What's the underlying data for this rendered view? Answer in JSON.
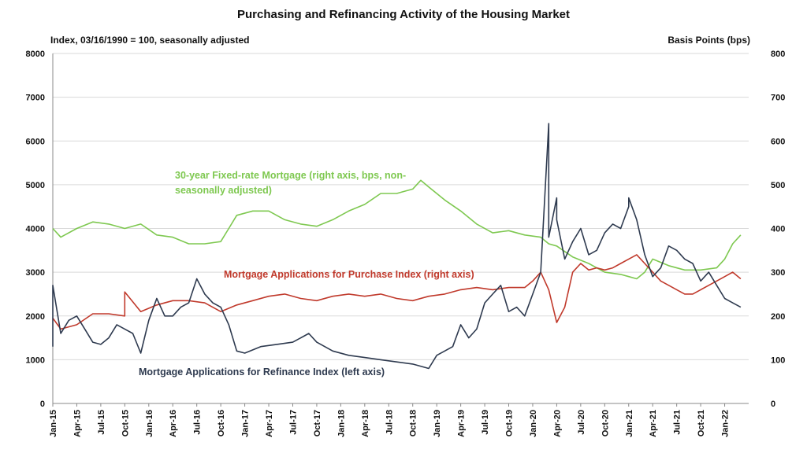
{
  "chart_data": {
    "type": "line",
    "title": "Purchasing and Refinancing Activity of the Housing Market",
    "left_axis": {
      "label": "Index, 03/16/1990 = 100, seasonally adjusted",
      "range": [
        0,
        8000
      ],
      "ticks": [
        "0",
        "1000",
        "2000",
        "3000",
        "4000",
        "5000",
        "6000",
        "7000",
        "8000"
      ]
    },
    "right_axis": {
      "label": "Basis Points (bps)",
      "range": [
        0,
        800
      ],
      "ticks": [
        "0",
        "100",
        "200",
        "300",
        "400",
        "500",
        "600",
        "700",
        "800"
      ]
    },
    "x_ticks": [
      "Jan-15",
      "Apr-15",
      "Jul-15",
      "Oct-15",
      "Jan-16",
      "Apr-16",
      "Jul-16",
      "Oct-16",
      "Jan-17",
      "Apr-17",
      "Jul-17",
      "Oct-17",
      "Jan-18",
      "Apr-18",
      "Jul-18",
      "Oct-18",
      "Jan-19",
      "Apr-19",
      "Jul-19",
      "Oct-19",
      "Jan-20",
      "Apr-20",
      "Jul-20",
      "Oct-20",
      "Jan-21",
      "Apr-21",
      "Jul-21",
      "Oct-21",
      "Jan-22"
    ],
    "x_range": [
      "2015-01",
      "2022-04"
    ],
    "grid": "horizontal",
    "series": [
      {
        "name": "Mortgage Applications for Refinance Index (left axis)",
        "axis": "left",
        "color": "#2e3a4f",
        "x": [
          "2015-01",
          "2015-01",
          "2015-02",
          "2015-03",
          "2015-04",
          "2015-05",
          "2015-06",
          "2015-07",
          "2015-08",
          "2015-09",
          "2015-10",
          "2015-11",
          "2015-12",
          "2016-01",
          "2016-02",
          "2016-03",
          "2016-04",
          "2016-05",
          "2016-06",
          "2016-07",
          "2016-08",
          "2016-09",
          "2016-10",
          "2016-11",
          "2016-12",
          "2017-01",
          "2017-03",
          "2017-05",
          "2017-07",
          "2017-09",
          "2017-10",
          "2017-12",
          "2018-02",
          "2018-04",
          "2018-06",
          "2018-08",
          "2018-10",
          "2018-12",
          "2019-01",
          "2019-02",
          "2019-03",
          "2019-04",
          "2019-05",
          "2019-06",
          "2019-07",
          "2019-08",
          "2019-09",
          "2019-10",
          "2019-11",
          "2019-12",
          "2020-01",
          "2020-02",
          "2020-03",
          "2020-03",
          "2020-04",
          "2020-04",
          "2020-05",
          "2020-06",
          "2020-07",
          "2020-08",
          "2020-09",
          "2020-10",
          "2020-11",
          "2020-12",
          "2021-01",
          "2021-01",
          "2021-02",
          "2021-03",
          "2021-04",
          "2021-05",
          "2021-06",
          "2021-07",
          "2021-08",
          "2021-09",
          "2021-10",
          "2021-11",
          "2021-12",
          "2022-01",
          "2022-02",
          "2022-03"
        ],
        "values": [
          1300,
          2700,
          1600,
          1900,
          2000,
          1700,
          1400,
          1350,
          1500,
          1800,
          1700,
          1600,
          1150,
          1900,
          2400,
          2000,
          2000,
          2200,
          2300,
          2850,
          2500,
          2300,
          2200,
          1800,
          1200,
          1150,
          1300,
          1350,
          1400,
          1600,
          1400,
          1200,
          1100,
          1050,
          1000,
          950,
          900,
          800,
          1100,
          1200,
          1300,
          1800,
          1500,
          1700,
          2300,
          2500,
          2700,
          2100,
          2200,
          2000,
          2500,
          3000,
          6400,
          3800,
          4700,
          4200,
          3300,
          3700,
          4000,
          3400,
          3500,
          3900,
          4100,
          4000,
          4500,
          4700,
          4200,
          3400,
          2900,
          3100,
          3600,
          3500,
          3300,
          3200,
          2800,
          3000,
          2700,
          2400,
          2300,
          2200
        ]
      },
      {
        "name": "Mortgage Applications for Purchase Index (right axis)",
        "axis": "right",
        "color": "#c0392b",
        "x": [
          "2015-01",
          "2015-02",
          "2015-04",
          "2015-06",
          "2015-08",
          "2015-10",
          "2015-10",
          "2015-12",
          "2016-02",
          "2016-04",
          "2016-06",
          "2016-08",
          "2016-10",
          "2016-12",
          "2017-02",
          "2017-04",
          "2017-06",
          "2017-08",
          "2017-10",
          "2017-12",
          "2018-02",
          "2018-04",
          "2018-06",
          "2018-08",
          "2018-10",
          "2018-12",
          "2019-02",
          "2019-04",
          "2019-06",
          "2019-08",
          "2019-10",
          "2019-12",
          "2020-01",
          "2020-02",
          "2020-03",
          "2020-04",
          "2020-05",
          "2020-06",
          "2020-07",
          "2020-08",
          "2020-09",
          "2020-10",
          "2020-11",
          "2020-12",
          "2021-01",
          "2021-02",
          "2021-03",
          "2021-04",
          "2021-05",
          "2021-06",
          "2021-07",
          "2021-08",
          "2021-09",
          "2021-10",
          "2021-11",
          "2021-12",
          "2022-01",
          "2022-02",
          "2022-03"
        ],
        "values": [
          195,
          170,
          180,
          205,
          205,
          200,
          255,
          210,
          225,
          235,
          235,
          230,
          210,
          225,
          235,
          245,
          250,
          240,
          235,
          245,
          250,
          245,
          250,
          240,
          235,
          245,
          250,
          260,
          265,
          260,
          265,
          265,
          280,
          300,
          260,
          185,
          220,
          300,
          320,
          305,
          310,
          305,
          310,
          320,
          330,
          340,
          320,
          300,
          280,
          270,
          260,
          250,
          250,
          260,
          270,
          280,
          290,
          300,
          285
        ]
      },
      {
        "name": "30-year Fixed-rate Mortgage (right axis, bps, non-seasonally adjusted)",
        "axis": "right",
        "color": "#7ec850",
        "x": [
          "2015-01",
          "2015-02",
          "2015-04",
          "2015-06",
          "2015-08",
          "2015-10",
          "2015-12",
          "2016-02",
          "2016-04",
          "2016-06",
          "2016-08",
          "2016-10",
          "2016-11",
          "2016-12",
          "2017-02",
          "2017-04",
          "2017-06",
          "2017-08",
          "2017-10",
          "2017-12",
          "2018-02",
          "2018-04",
          "2018-06",
          "2018-08",
          "2018-10",
          "2018-11",
          "2018-12",
          "2019-02",
          "2019-04",
          "2019-06",
          "2019-08",
          "2019-10",
          "2019-12",
          "2020-02",
          "2020-03",
          "2020-04",
          "2020-06",
          "2020-08",
          "2020-10",
          "2020-12",
          "2021-01",
          "2021-02",
          "2021-03",
          "2021-04",
          "2021-06",
          "2021-08",
          "2021-10",
          "2021-12",
          "2022-01",
          "2022-02",
          "2022-03"
        ],
        "values": [
          400,
          380,
          400,
          415,
          410,
          400,
          410,
          385,
          380,
          365,
          365,
          370,
          400,
          430,
          440,
          440,
          420,
          410,
          405,
          420,
          440,
          455,
          480,
          480,
          490,
          510,
          495,
          465,
          440,
          410,
          390,
          395,
          385,
          380,
          365,
          360,
          335,
          320,
          300,
          295,
          290,
          285,
          300,
          330,
          315,
          305,
          305,
          310,
          330,
          365,
          385
        ]
      }
    ]
  }
}
